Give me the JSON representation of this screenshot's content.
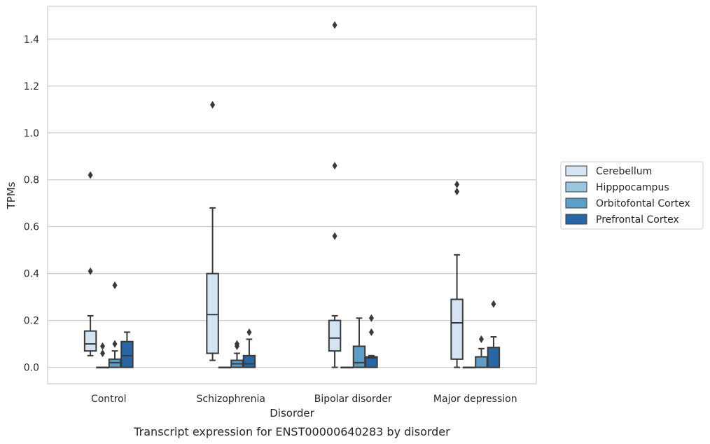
{
  "caption": "Transcript expression for ENST00000640283 by disorder",
  "chart_data": {
    "type": "box",
    "title": "",
    "xlabel": "Disorder",
    "ylabel": "TPMs",
    "ylim": [
      -0.07,
      1.54
    ],
    "yticks": [
      0.0,
      0.2,
      0.4,
      0.6,
      0.8,
      1.0,
      1.2,
      1.4
    ],
    "ytick_labels": [
      "0.0",
      "0.2",
      "0.4",
      "0.6",
      "0.8",
      "1.0",
      "1.2",
      "1.4"
    ],
    "categories": [
      "Control",
      "Schizophrenia",
      "Bipolar disorder",
      "Major depression"
    ],
    "grid": "horizontal",
    "legend_position": "right",
    "series": [
      {
        "name": "Cerebellum",
        "color": "#d4e4f2",
        "boxes": [
          {
            "q1": 0.07,
            "median": 0.1,
            "q3": 0.155,
            "whislo": 0.05,
            "whishi": 0.22,
            "fliers": [
              0.41,
              0.82
            ]
          },
          {
            "q1": 0.06,
            "median": 0.225,
            "q3": 0.4,
            "whislo": 0.03,
            "whishi": 0.68,
            "fliers": [
              1.12
            ]
          },
          {
            "q1": 0.07,
            "median": 0.125,
            "q3": 0.2,
            "whislo": 0.0,
            "whishi": 0.22,
            "fliers": [
              0.56,
              0.86,
              1.46
            ]
          },
          {
            "q1": 0.035,
            "median": 0.19,
            "q3": 0.29,
            "whislo": 0.0,
            "whishi": 0.48,
            "fliers": [
              0.75,
              0.78
            ]
          }
        ]
      },
      {
        "name": "Hipppocampus",
        "color": "#9bc4df",
        "boxes": [
          {
            "q1": 0.0,
            "median": 0.0,
            "q3": 0.0,
            "whislo": 0.0,
            "whishi": 0.0,
            "fliers": [
              0.06,
              0.09
            ]
          },
          {
            "q1": 0.0,
            "median": 0.0,
            "q3": 0.0,
            "whislo": 0.0,
            "whishi": 0.0,
            "fliers": []
          },
          {
            "q1": 0.0,
            "median": 0.0,
            "q3": 0.0,
            "whislo": 0.0,
            "whishi": 0.0,
            "fliers": []
          },
          {
            "q1": 0.0,
            "median": 0.0,
            "q3": 0.0,
            "whislo": 0.0,
            "whishi": 0.0,
            "fliers": []
          }
        ]
      },
      {
        "name": "Orbitofontal Cortex",
        "color": "#5c9ec8",
        "boxes": [
          {
            "q1": 0.0,
            "median": 0.02,
            "q3": 0.035,
            "whislo": 0.0,
            "whishi": 0.07,
            "fliers": [
              0.1,
              0.35
            ]
          },
          {
            "q1": 0.0,
            "median": 0.015,
            "q3": 0.03,
            "whislo": 0.0,
            "whishi": 0.06,
            "fliers": [
              0.09,
              0.1
            ]
          },
          {
            "q1": 0.0,
            "median": 0.02,
            "q3": 0.09,
            "whislo": 0.0,
            "whishi": 0.21,
            "fliers": []
          },
          {
            "q1": 0.0,
            "median": 0.0,
            "q3": 0.045,
            "whislo": 0.0,
            "whishi": 0.08,
            "fliers": [
              0.12
            ]
          }
        ]
      },
      {
        "name": "Prefrontal Cortex",
        "color": "#2866a6",
        "boxes": [
          {
            "q1": 0.0,
            "median": 0.05,
            "q3": 0.11,
            "whislo": 0.0,
            "whishi": 0.15,
            "fliers": []
          },
          {
            "q1": 0.0,
            "median": 0.015,
            "q3": 0.05,
            "whislo": 0.0,
            "whishi": 0.12,
            "fliers": [
              0.15
            ]
          },
          {
            "q1": 0.0,
            "median": 0.04,
            "q3": 0.045,
            "whislo": 0.0,
            "whishi": 0.05,
            "fliers": [
              0.15,
              0.21
            ]
          },
          {
            "q1": 0.0,
            "median": 0.0,
            "q3": 0.085,
            "whislo": 0.0,
            "whishi": 0.13,
            "fliers": [
              0.27
            ]
          }
        ]
      }
    ]
  }
}
